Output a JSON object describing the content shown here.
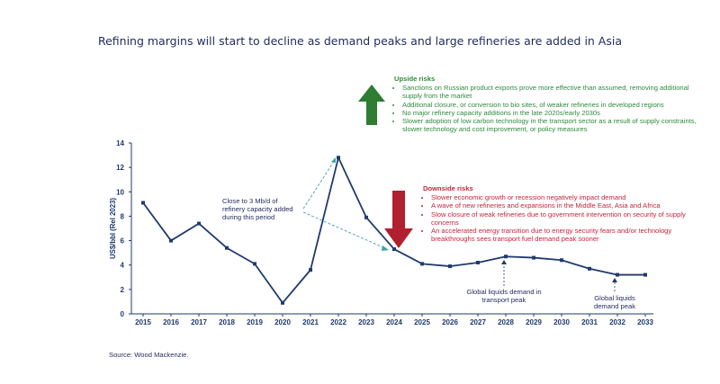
{
  "title": "Refining margins will start to decline as demand peaks and large refineries  are added in Asia",
  "source": "Source: Wood Mackenzie.",
  "upside": {
    "title": "Upside risks",
    "color": "#2e8b3e",
    "items": [
      "Sanctions on Russian product exports prove more effective than assumed, removing additional supply from the market",
      "Additional closure, or conversion to bio sites, of weaker refineries in developed regions",
      "No major refinery capacity additions in the late 2020s/early 2030s",
      "Slower adoption of low carbon technology in the transport sector as a result of supply constraints, slower technology and cost improvement, or policy measures"
    ]
  },
  "downside": {
    "title": "Downside risks",
    "color": "#c0283a",
    "items": [
      "Slower economic growth or recession negatively impact demand",
      "A wave of new refineries and expansions in the Middle East, Asia and Africa",
      "Slow closure of weak refineries due to government intervention on security of supply concerns",
      "An accelerated energy transition due to energy security fears and/or technology breakthroughs sees transport fuel demand peak sooner"
    ]
  },
  "annotations": {
    "capacity": "Close to 3 Mb/d of refinery capacity added during this period",
    "peak2028": "Global liquids demand in transport peak",
    "peak2032": "Global liquids demand peak"
  },
  "chart_data": {
    "type": "line",
    "ylabel": "US$/bbl (Rel 2023)",
    "xlabel": "",
    "ylim": [
      0,
      14
    ],
    "yticks": [
      0,
      2,
      4,
      6,
      8,
      10,
      12,
      14
    ],
    "categories": [
      "2015",
      "2016",
      "2017",
      "2018",
      "2019",
      "2020",
      "2021",
      "2022",
      "2023",
      "2024",
      "2025",
      "2026",
      "2027",
      "2028",
      "2029",
      "2030",
      "2031",
      "2032",
      "2033"
    ],
    "series": [
      {
        "name": "Refining margin",
        "color": "#1f3a6e",
        "values": [
          9.1,
          6.0,
          7.4,
          5.4,
          4.1,
          0.9,
          3.6,
          12.8,
          7.9,
          5.3,
          4.1,
          3.9,
          4.2,
          4.7,
          4.6,
          4.4,
          3.7,
          3.2,
          3.2
        ]
      }
    ]
  }
}
